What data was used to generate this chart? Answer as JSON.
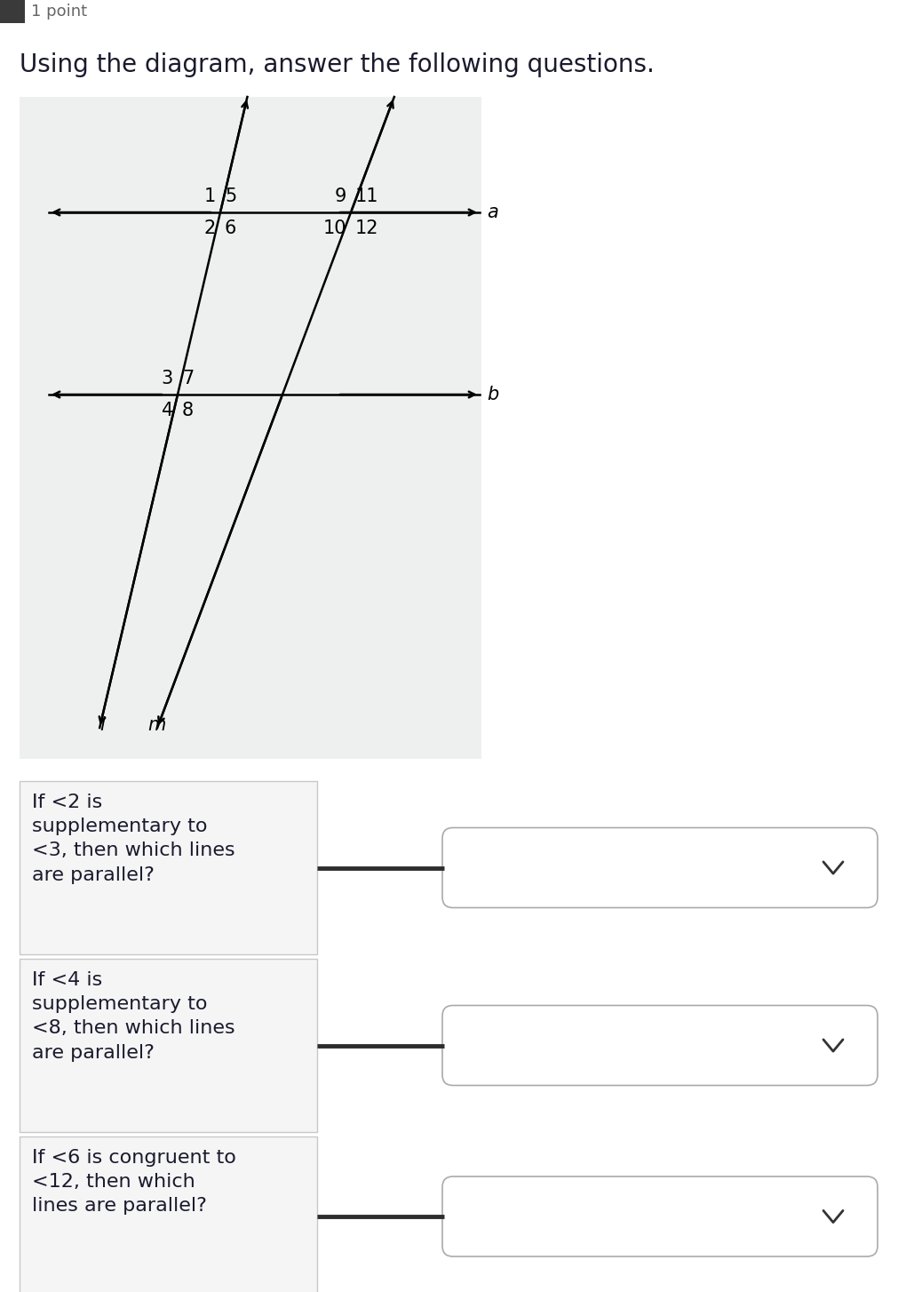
{
  "title": "Using the diagram, answer the following questions.",
  "title_fontsize": 20,
  "header_text": "1 point",
  "bg_color": "#ffffff",
  "diagram_bg": "#eef0f0",
  "question1": "If <2 is\nsupplementary to\n<3, then which lines\nare parallel?",
  "question2": "If <4 is\nsupplementary to\n<8, then which lines\nare parallel?",
  "question3": "If <6 is congruent to\n<12, then which\nlines are parallel?",
  "line_a_label": "a",
  "line_b_label": "b",
  "line_l_label": "l",
  "line_m_label": "m",
  "text_color": "#1a1a2e",
  "diagram_line_color": "#000000",
  "connector_color": "#2d2d2d",
  "q_box_bg": "#f5f5f5",
  "q_box_border": "#c8c8c8",
  "dd_bg": "#ffffff",
  "dd_border": "#aaaaaa",
  "chevron_color": "#333333"
}
